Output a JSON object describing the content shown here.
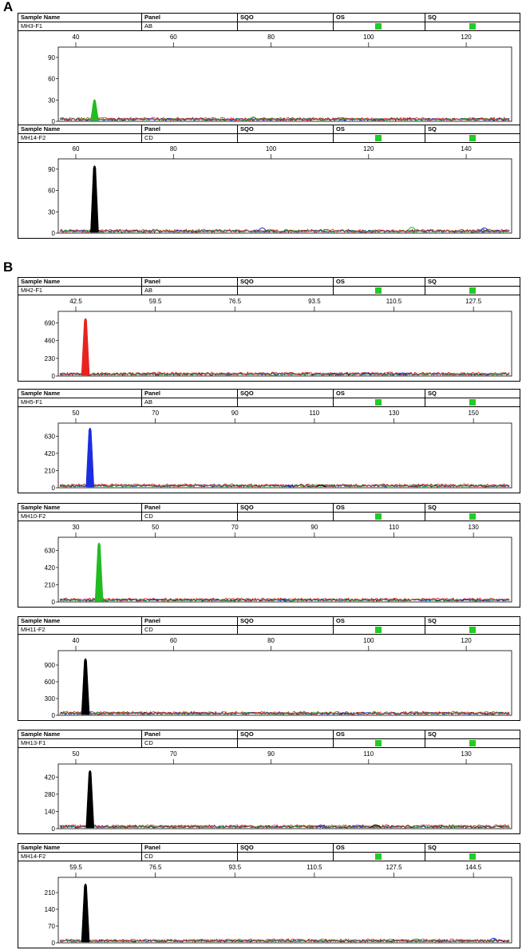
{
  "sections": [
    {
      "label": "A"
    },
    {
      "label": "B"
    }
  ],
  "header": {
    "sample_name": "Sample Name",
    "panel": "Panel",
    "sqo": "SQO",
    "os": "OS",
    "sq": "SQ"
  },
  "colors": {
    "red": "#e8231f",
    "blue": "#1a2ee0",
    "green": "#22bb22",
    "black": "#000000",
    "flag": "#22cc22"
  },
  "panels": [
    {
      "sample": "MH3-F1",
      "panel_name": "AB"
    },
    {
      "sample": "MH14-F2",
      "panel_name": "CD"
    },
    {
      "sample": "MH2-F1",
      "panel_name": "AB"
    },
    {
      "sample": "MH5-F1",
      "panel_name": "AB"
    },
    {
      "sample": "MH10-F2",
      "panel_name": "CD"
    },
    {
      "sample": "MH11-F2",
      "panel_name": "CD"
    },
    {
      "sample": "MH13-F1",
      "panel_name": "CD"
    },
    {
      "sample": "MH14-F2",
      "panel_name": "CD"
    }
  ],
  "chart_data": [
    {
      "type": "line",
      "xticks": [
        "40",
        "60",
        "80",
        "100",
        "120"
      ],
      "yticks": [
        "0",
        "30",
        "60",
        "90"
      ],
      "ylim": [
        0,
        100
      ],
      "peaks": [
        {
          "series": "green",
          "x": 0.08,
          "y": 32
        }
      ],
      "small": [
        {
          "series": "green",
          "x": 0.43,
          "y": 8
        }
      ]
    },
    {
      "type": "line",
      "xticks": [
        "60",
        "80",
        "100",
        "120",
        "140"
      ],
      "yticks": [
        "0",
        "30",
        "60",
        "90"
      ],
      "ylim": [
        0,
        100
      ],
      "peaks": [
        {
          "series": "black",
          "x": 0.08,
          "y": 96
        }
      ],
      "small": [
        {
          "series": "blue",
          "x": 0.45,
          "y": 10
        },
        {
          "series": "green",
          "x": 0.78,
          "y": 12
        },
        {
          "series": "blue",
          "x": 0.94,
          "y": 10
        }
      ]
    },
    {
      "type": "line",
      "xticks": [
        "42.5",
        "59.5",
        "76.5",
        "93.5",
        "110.5",
        "127.5"
      ],
      "yticks": [
        "0",
        "230",
        "460",
        "690"
      ],
      "ylim": [
        0,
        800
      ],
      "peaks": [
        {
          "series": "red",
          "x": 0.06,
          "y": 760
        }
      ],
      "small": [
        {
          "series": "blue",
          "x": 0.68,
          "y": 40
        },
        {
          "series": "blue",
          "x": 0.76,
          "y": 40
        },
        {
          "series": "green",
          "x": 0.97,
          "y": 20
        }
      ]
    },
    {
      "type": "line",
      "xticks": [
        "50",
        "70",
        "90",
        "110",
        "130",
        "150"
      ],
      "yticks": [
        "0",
        "210",
        "420",
        "630"
      ],
      "ylim": [
        0,
        750
      ],
      "peaks": [
        {
          "series": "blue",
          "x": 0.07,
          "y": 740
        }
      ],
      "small": [
        {
          "series": "green",
          "x": 0.15,
          "y": 25
        },
        {
          "series": "blue",
          "x": 0.51,
          "y": 20
        },
        {
          "series": "black",
          "x": 0.58,
          "y": 30
        },
        {
          "series": "green",
          "x": 0.82,
          "y": 20
        }
      ]
    },
    {
      "type": "line",
      "xticks": [
        "30",
        "50",
        "70",
        "90",
        "110",
        "130"
      ],
      "yticks": [
        "0",
        "210",
        "420",
        "630"
      ],
      "ylim": [
        0,
        750
      ],
      "peaks": [
        {
          "series": "green",
          "x": 0.09,
          "y": 730
        }
      ],
      "small": [
        {
          "series": "blue",
          "x": 0.21,
          "y": 30
        },
        {
          "series": "blue",
          "x": 0.5,
          "y": 30
        },
        {
          "series": "blue",
          "x": 0.81,
          "y": 25
        },
        {
          "series": "blue",
          "x": 0.9,
          "y": 25
        }
      ]
    },
    {
      "type": "line",
      "xticks": [
        "40",
        "60",
        "80",
        "100",
        "120"
      ],
      "yticks": [
        "0",
        "300",
        "600",
        "900"
      ],
      "ylim": [
        0,
        1100
      ],
      "peaks": [
        {
          "series": "black",
          "x": 0.06,
          "y": 1030
        }
      ],
      "small": [
        {
          "series": "blue",
          "x": 0.63,
          "y": 25
        },
        {
          "series": "green",
          "x": 0.97,
          "y": 30
        }
      ]
    },
    {
      "type": "line",
      "xticks": [
        "50",
        "70",
        "90",
        "110",
        "130"
      ],
      "yticks": [
        "0",
        "140",
        "280",
        "420"
      ],
      "ylim": [
        0,
        500
      ],
      "peaks": [
        {
          "series": "black",
          "x": 0.07,
          "y": 480
        }
      ],
      "small": [
        {
          "series": "blue",
          "x": 0.58,
          "y": 30
        },
        {
          "series": "blue",
          "x": 0.66,
          "y": 30
        },
        {
          "series": "black",
          "x": 0.7,
          "y": 35
        },
        {
          "series": "green",
          "x": 0.87,
          "y": 15
        }
      ]
    },
    {
      "type": "line",
      "xticks": [
        "59.5",
        "76.5",
        "93.5",
        "110.5",
        "127.5",
        "144.5"
      ],
      "yticks": [
        "0",
        "70",
        "140",
        "210"
      ],
      "ylim": [
        0,
        260
      ],
      "peaks": [
        {
          "series": "black",
          "x": 0.06,
          "y": 250
        }
      ],
      "small": [
        {
          "series": "green",
          "x": 0.79,
          "y": 20
        },
        {
          "series": "blue",
          "x": 0.96,
          "y": 25
        }
      ]
    }
  ]
}
